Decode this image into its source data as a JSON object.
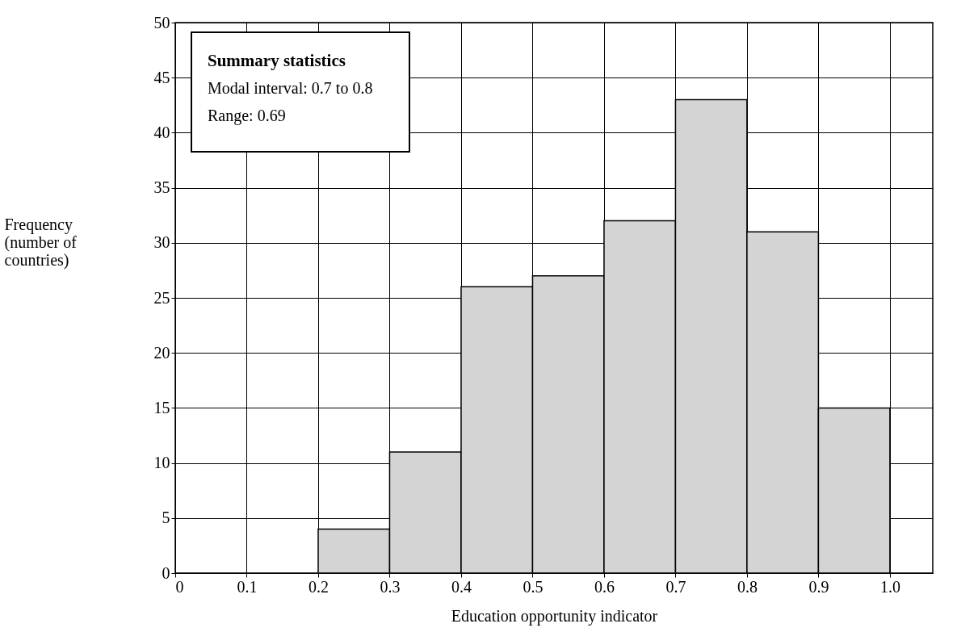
{
  "chart_data": {
    "type": "histogram",
    "xlabel": "Education opportunity indicator",
    "ylabel": "Frequency\n(number of\ncountries)",
    "bins": [
      0.2,
      0.3,
      0.4,
      0.5,
      0.6,
      0.7,
      0.8,
      0.9,
      1.0
    ],
    "values": [
      4,
      11,
      26,
      27,
      32,
      43,
      31,
      15
    ],
    "color": "#d4d4d4",
    "xlim": [
      0,
      1.06
    ],
    "xticks": [
      0,
      0.1,
      0.2,
      0.3,
      0.4,
      0.5,
      0.6,
      0.7,
      0.8,
      0.9,
      {
        "value": 1.0,
        "label": "1.0"
      }
    ],
    "ylim": [
      0,
      50
    ],
    "yticks": [
      0,
      5,
      10,
      15,
      20,
      25,
      30,
      35,
      40,
      45,
      50
    ],
    "grid": true,
    "annotations": [
      "Summary statistics",
      "Modal interval: 0.7 to 0.8",
      "Range: 0.69"
    ]
  }
}
